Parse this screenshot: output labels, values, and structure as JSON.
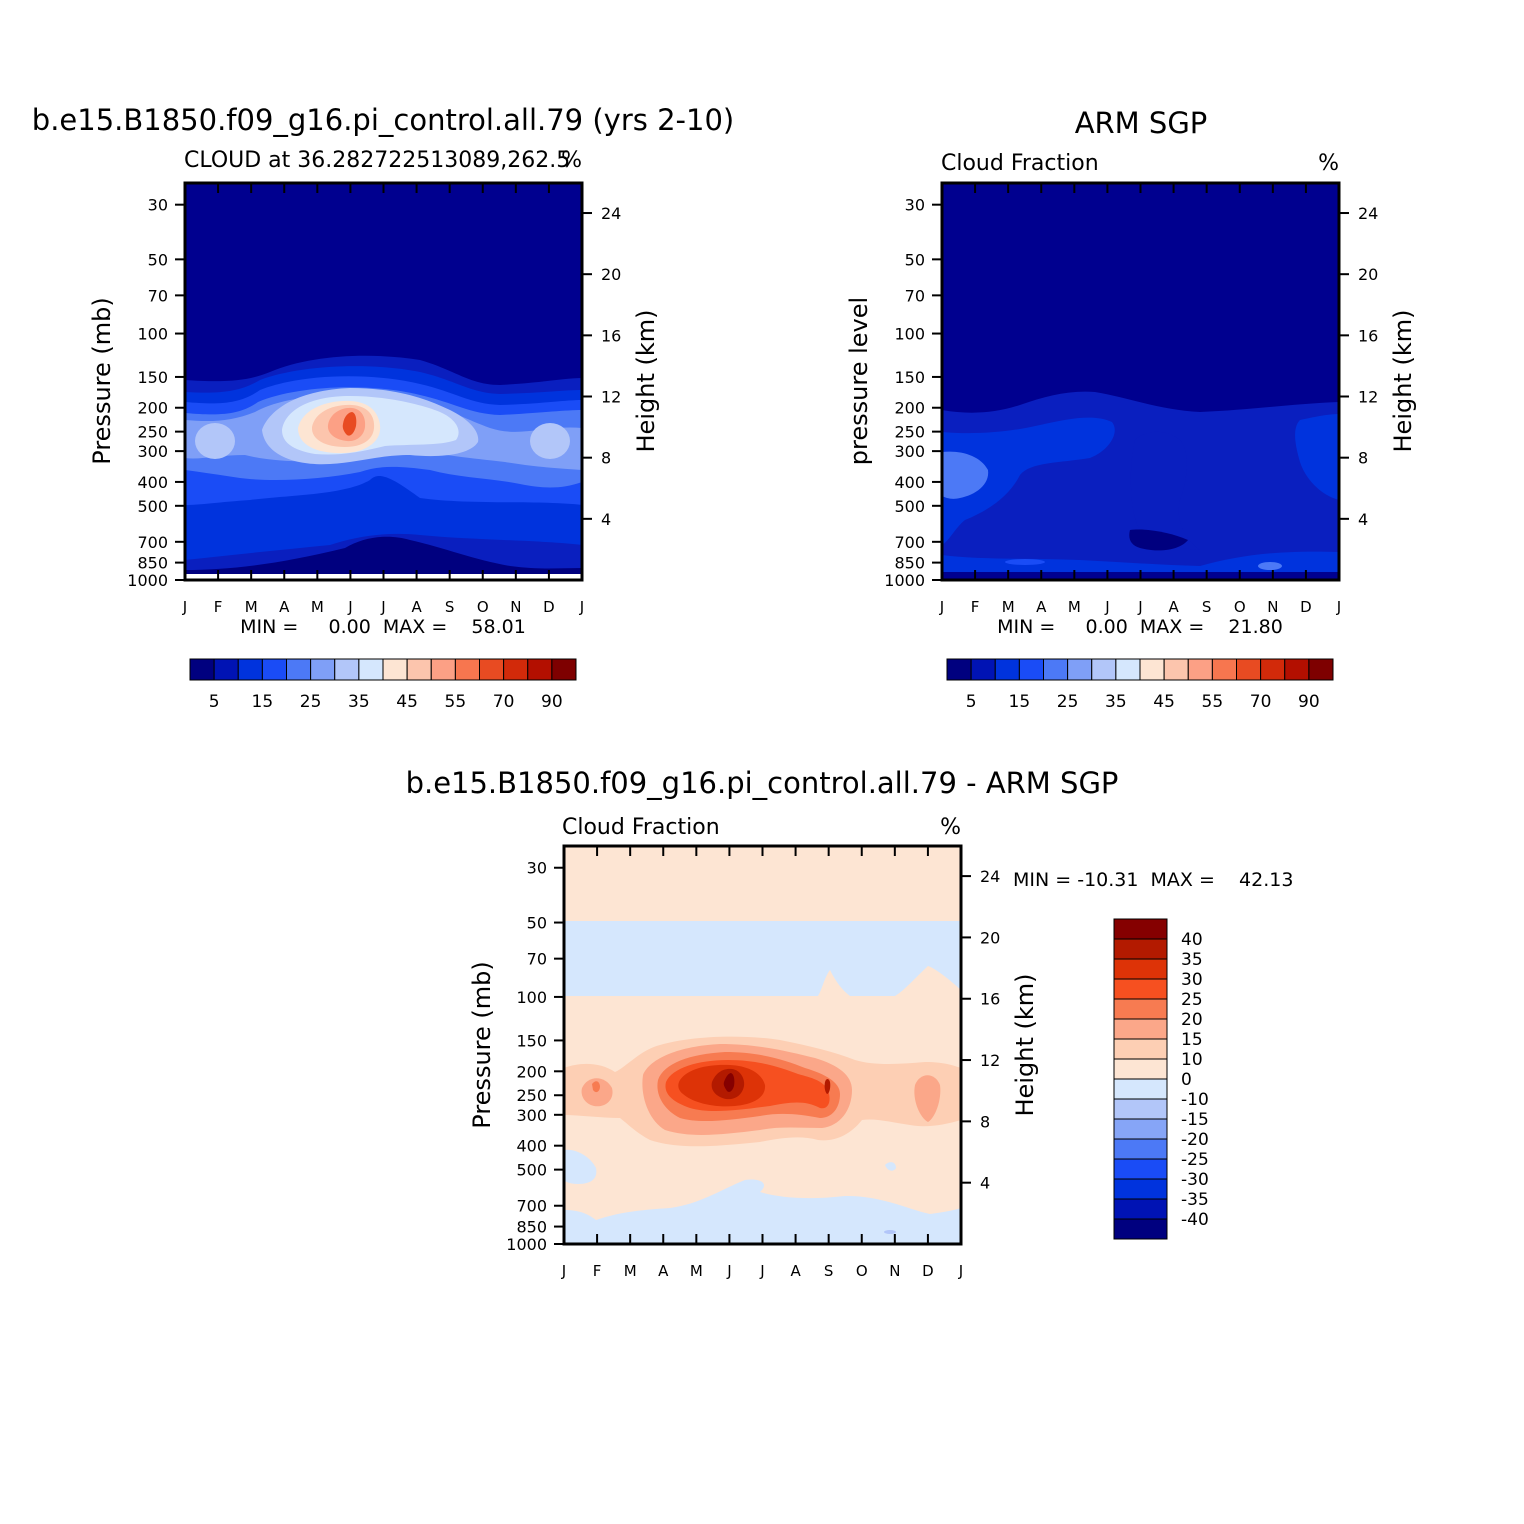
{
  "chart_data": [
    {
      "type": "heatmap",
      "title": "b.e15.B1850.f09_g16.pi_control.all.79 (yrs 2-10)",
      "subtitle_left": "CLOUD at 36.282722513089,262.5",
      "subtitle_right": "%",
      "ylabel": "Pressure (mb)",
      "ylabel_right": "Height (km)",
      "x_ticks": [
        "J",
        "F",
        "M",
        "A",
        "M",
        "J",
        "J",
        "A",
        "S",
        "O",
        "N",
        "D",
        "J"
      ],
      "y_ticks": [
        "30",
        "50",
        "70",
        "100",
        "150",
        "200",
        "250",
        "300",
        "400",
        "500",
        "700",
        "850",
        "1000"
      ],
      "y_ticks_right": [
        "24",
        "20",
        "16",
        "12",
        "8",
        "4"
      ],
      "stats": "MIN =     0.00  MAX =    58.01",
      "min": 0.0,
      "max": 58.01,
      "colorbar_labels": [
        "5",
        "15",
        "25",
        "35",
        "45",
        "55",
        "70",
        "90"
      ],
      "colors": [
        "#00007f",
        "#0013b4",
        "#0033dd",
        "#1a4cf6",
        "#4c79f6",
        "#7f9ff7",
        "#b2c6f9",
        "#d5e7fd",
        "#fde5d3",
        "#fcc5ad",
        "#fca085",
        "#f7764f",
        "#e84b22",
        "#d22a0a",
        "#b30f00",
        "#7e0000"
      ]
    },
    {
      "type": "heatmap",
      "title": "ARM SGP",
      "subtitle_left": "Cloud Fraction",
      "subtitle_right": "%",
      "ylabel": "pressure level",
      "ylabel_right": "Height (km)",
      "x_ticks": [
        "J",
        "F",
        "M",
        "A",
        "M",
        "J",
        "J",
        "A",
        "S",
        "O",
        "N",
        "D",
        "J"
      ],
      "y_ticks": [
        "30",
        "50",
        "70",
        "100",
        "150",
        "200",
        "250",
        "300",
        "400",
        "500",
        "700",
        "850",
        "1000"
      ],
      "y_ticks_right": [
        "24",
        "20",
        "16",
        "12",
        "8",
        "4"
      ],
      "stats": "MIN =     0.00  MAX =    21.80",
      "min": 0.0,
      "max": 21.8,
      "colorbar_labels": [
        "5",
        "15",
        "25",
        "35",
        "45",
        "55",
        "70",
        "90"
      ],
      "colors": [
        "#00007f",
        "#0013b4",
        "#0033dd",
        "#1a4cf6",
        "#4c79f6",
        "#7f9ff7",
        "#b2c6f9",
        "#d5e7fd",
        "#fde5d3",
        "#fcc5ad",
        "#fca085",
        "#f7764f",
        "#e84b22",
        "#d22a0a",
        "#b30f00",
        "#7e0000"
      ]
    },
    {
      "type": "heatmap",
      "title": "b.e15.B1850.f09_g16.pi_control.all.79 - ARM SGP",
      "subtitle_left": "Cloud Fraction",
      "subtitle_right": "%",
      "ylabel": "Pressure (mb)",
      "ylabel_right": "Height (km)",
      "x_ticks": [
        "J",
        "F",
        "M",
        "A",
        "M",
        "J",
        "J",
        "A",
        "S",
        "O",
        "N",
        "D",
        "J"
      ],
      "y_ticks": [
        "30",
        "50",
        "70",
        "100",
        "150",
        "200",
        "250",
        "300",
        "400",
        "500",
        "700",
        "850",
        "1000"
      ],
      "y_ticks_right": [
        "24",
        "20",
        "16",
        "12",
        "8",
        "4"
      ],
      "stats": "MIN = -10.31  MAX =    42.13",
      "min": -10.31,
      "max": 42.13,
      "colorbar_labels": [
        "40",
        "35",
        "30",
        "25",
        "20",
        "15",
        "10",
        "0",
        "-10",
        "-15",
        "-20",
        "-25",
        "-30",
        "-35",
        "-40"
      ],
      "colors": [
        "#850000",
        "#b31a00",
        "#dd3307",
        "#f65020",
        "#f77b51",
        "#fba789",
        "#fdcfb4",
        "#fde5d3",
        "#d5e7fd",
        "#b2c6f9",
        "#86a5f7",
        "#4c79f6",
        "#1a4cf6",
        "#0033dd",
        "#0013b4",
        "#00007f"
      ]
    }
  ]
}
